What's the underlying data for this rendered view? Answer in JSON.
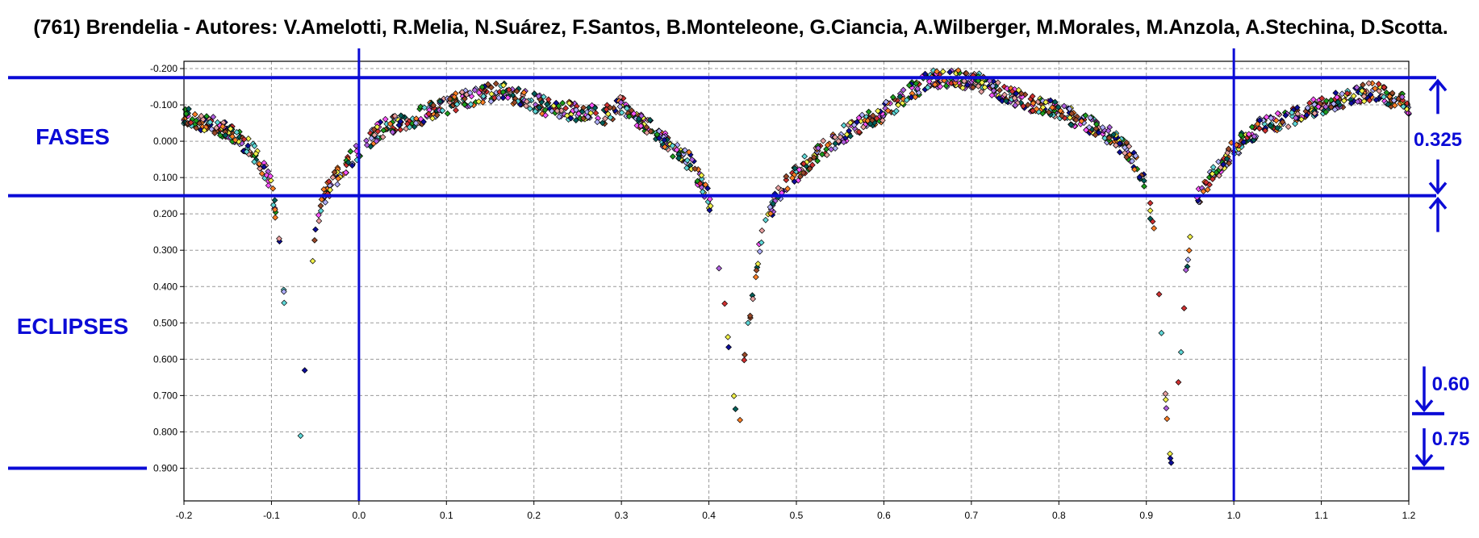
{
  "chart_data": {
    "type": "scatter",
    "title": "(761) Brendelia - Autores: V.Amelotti, R.Melia, N.Suárez, F.Santos, B.Monteleone, G.Ciancia, A.Wilberger, M.Morales, M.Anzola, A.Stechina, D.Scotta.",
    "xlabel": "",
    "ylabel": "",
    "xlim": [
      -0.2,
      1.2
    ],
    "ylim": [
      -0.22,
      0.99
    ],
    "y_inverted": true,
    "grid": true,
    "x_ticks": [
      "-0.2",
      "-0.1",
      "0.0",
      "0.1",
      "0.2",
      "0.3",
      "0.4",
      "0.5",
      "0.6",
      "0.7",
      "0.8",
      "0.9",
      "1.0",
      "1.1",
      "1.2"
    ],
    "x_tick_values": [
      -0.2,
      -0.1,
      0.0,
      0.1,
      0.2,
      0.3,
      0.4,
      0.5,
      0.6,
      0.7,
      0.8,
      0.9,
      1.0,
      1.1,
      1.2
    ],
    "y_ticks": [
      "-0.200",
      "-0.100",
      "0.000",
      "0.100",
      "0.200",
      "0.300",
      "0.400",
      "0.500",
      "0.600",
      "0.700",
      "0.800",
      "0.900"
    ],
    "y_tick_values": [
      -0.2,
      -0.1,
      0.0,
      0.1,
      0.2,
      0.3,
      0.4,
      0.5,
      0.6,
      0.7,
      0.8,
      0.9
    ],
    "point_colors": [
      "#ff7f27",
      "#1c9c1c",
      "#0d0d9a",
      "#5fd8d8",
      "#f2f24a",
      "#e8a0a0",
      "#00605a",
      "#9a4a2a",
      "#d03030",
      "#b060e0",
      "#ff55ff",
      "#b0b0ff"
    ],
    "light_curve_samples": [
      [
        -0.2,
        -0.07
      ],
      [
        -0.15,
        -0.03
      ],
      [
        -0.12,
        0.03
      ],
      [
        -0.1,
        0.12
      ],
      [
        -0.09,
        0.28
      ],
      [
        -0.085,
        0.45
      ],
      [
        -0.08,
        0.65
      ],
      [
        -0.075,
        0.82
      ],
      [
        -0.07,
        0.93
      ],
      [
        -0.065,
        0.75
      ],
      [
        -0.06,
        0.55
      ],
      [
        -0.055,
        0.38
      ],
      [
        -0.05,
        0.26
      ],
      [
        -0.04,
        0.15
      ],
      [
        -0.02,
        0.08
      ],
      [
        0.0,
        0.02
      ],
      [
        0.03,
        -0.04
      ],
      [
        0.06,
        -0.06
      ],
      [
        0.1,
        -0.1
      ],
      [
        0.16,
        -0.14
      ],
      [
        0.22,
        -0.09
      ],
      [
        0.28,
        -0.07
      ],
      [
        0.3,
        -0.1
      ],
      [
        0.34,
        -0.02
      ],
      [
        0.38,
        0.06
      ],
      [
        0.4,
        0.16
      ],
      [
        0.41,
        0.3
      ],
      [
        0.42,
        0.5
      ],
      [
        0.425,
        0.62
      ],
      [
        0.43,
        0.72
      ],
      [
        0.435,
        0.78
      ],
      [
        0.44,
        0.6
      ],
      [
        0.45,
        0.42
      ],
      [
        0.46,
        0.26
      ],
      [
        0.48,
        0.14
      ],
      [
        0.52,
        0.04
      ],
      [
        0.56,
        -0.03
      ],
      [
        0.6,
        -0.08
      ],
      [
        0.65,
        -0.17
      ],
      [
        0.7,
        -0.17
      ],
      [
        0.75,
        -0.12
      ],
      [
        0.8,
        -0.08
      ],
      [
        0.85,
        -0.03
      ],
      [
        0.88,
        0.03
      ],
      [
        0.9,
        0.12
      ],
      [
        0.91,
        0.28
      ],
      [
        0.915,
        0.45
      ],
      [
        0.92,
        0.65
      ],
      [
        0.925,
        0.82
      ],
      [
        0.93,
        0.93
      ],
      [
        0.935,
        0.75
      ],
      [
        0.94,
        0.55
      ],
      [
        0.945,
        0.38
      ],
      [
        0.95,
        0.26
      ],
      [
        0.96,
        0.15
      ],
      [
        0.98,
        0.08
      ],
      [
        1.0,
        0.02
      ],
      [
        1.03,
        -0.04
      ],
      [
        1.06,
        -0.06
      ],
      [
        1.1,
        -0.1
      ],
      [
        1.16,
        -0.14
      ],
      [
        1.2,
        -0.1
      ]
    ],
    "overlay": {
      "horizontal_lines_y": [
        -0.175,
        0.15
      ],
      "vertical_lines_x": [
        0.0,
        1.0
      ],
      "labels": {
        "fases": "FASES",
        "eclipses": "ECLIPSES",
        "measure_1": "0.325",
        "measure_2": "0.60",
        "measure_3": "0.75"
      },
      "color": "#0b0bd6"
    }
  }
}
